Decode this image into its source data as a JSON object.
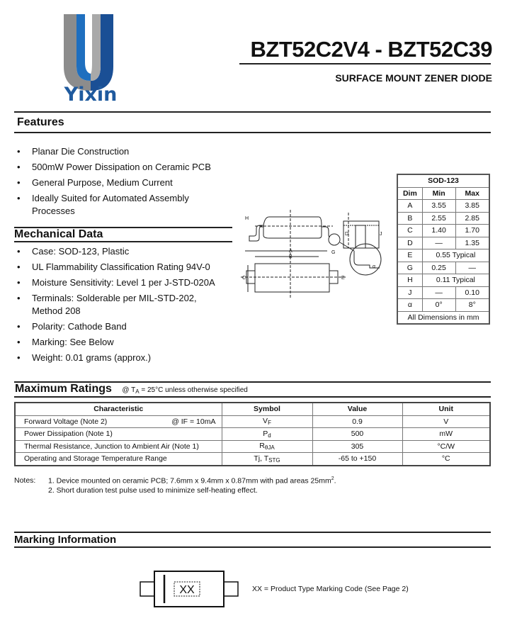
{
  "logo": {
    "text": "Yixin",
    "colors": {
      "gray": "#8a8a8a",
      "blue": "#1a5fa8",
      "text": "#1f5a9e"
    }
  },
  "header": {
    "title": "BZT52C2V4 - BZT52C39",
    "subtitle": "SURFACE MOUNT ZENER DIODE"
  },
  "features": {
    "heading": "Features",
    "items": [
      "Planar Die Construction",
      "500mW Power Dissipation on Ceramic PCB",
      "General Purpose, Medium Current",
      "Ideally Suited for Automated Assembly Processes"
    ]
  },
  "mechanical": {
    "heading": "Mechanical Data",
    "items": [
      "Case: SOD-123, Plastic",
      "UL Flammability Classification Rating 94V-0",
      "Moisture Sensitivity: Level 1 per J-STD-020A",
      "Terminals: Solderable per MIL-STD-202, Method 208",
      "Polarity: Cathode Band",
      "Marking: See Below",
      "Weight: 0.01 grams (approx.)"
    ]
  },
  "diagram_labels": {
    "A": "A",
    "B": "B",
    "C": "C",
    "D": "D",
    "E": "E",
    "G": "G",
    "H": "H",
    "J": "J",
    "alpha": "α"
  },
  "dim_table": {
    "title": "SOD-123",
    "headers": [
      "Dim",
      "Min",
      "Max"
    ],
    "rows": [
      [
        "A",
        "3.55",
        "3.85"
      ],
      [
        "B",
        "2.55",
        "2.85"
      ],
      [
        "C",
        "1.40",
        "1.70"
      ],
      [
        "D",
        "—",
        "1.35"
      ],
      [
        "E",
        "0.55 Typical"
      ],
      [
        "G",
        "0.25",
        "—"
      ],
      [
        "H",
        "0.11 Typical"
      ],
      [
        "J",
        "—",
        "0.10"
      ],
      [
        "α",
        "0°",
        "8°"
      ]
    ],
    "footer": "All Dimensions in mm"
  },
  "max_ratings": {
    "heading": "Maximum Ratings",
    "condition": "@ TA = 25°C unless otherwise specified",
    "cond_pre": "@ T",
    "cond_sub": "A",
    "cond_post": " = 25°C unless otherwise specified",
    "headers": [
      "Characteristic",
      "Symbol",
      "Value",
      "Unit"
    ],
    "rows": [
      {
        "char": "Forward Voltage (Note 2)",
        "cond": "@ IF = 10mA",
        "cond_pre": "@ I",
        "cond_sub": "F",
        "cond_post": " = 10mA",
        "sym": "V",
        "sym_sub": "F",
        "value": "0.9",
        "unit": "V"
      },
      {
        "char": "Power Dissipation (Note 1)",
        "sym": "P",
        "sym_sub": "d",
        "value": "500",
        "unit": "mW"
      },
      {
        "char": "Thermal Resistance, Junction to Ambient Air (Note 1)",
        "sym": "R",
        "sym_sub": "θJA",
        "value": "305",
        "unit": "°C/W"
      },
      {
        "char": "Operating and Storage Temperature Range",
        "sym": "Tj, T",
        "sym_sub": "STG",
        "value": "-65 to +150",
        "unit": "°C"
      }
    ]
  },
  "notes": {
    "label": "Notes:",
    "items": [
      "1. Device mounted on ceramic PCB; 7.6mm x 9.4mm x 0.87mm with pad areas 25mm",
      "2. Short duration test pulse used to minimize self-heating effect."
    ],
    "note1_sup": "2",
    "note1_end": "."
  },
  "marking": {
    "heading": "Marking Information",
    "code": "XX",
    "legend": "XX = Product Type Marking Code (See Page 2)"
  }
}
